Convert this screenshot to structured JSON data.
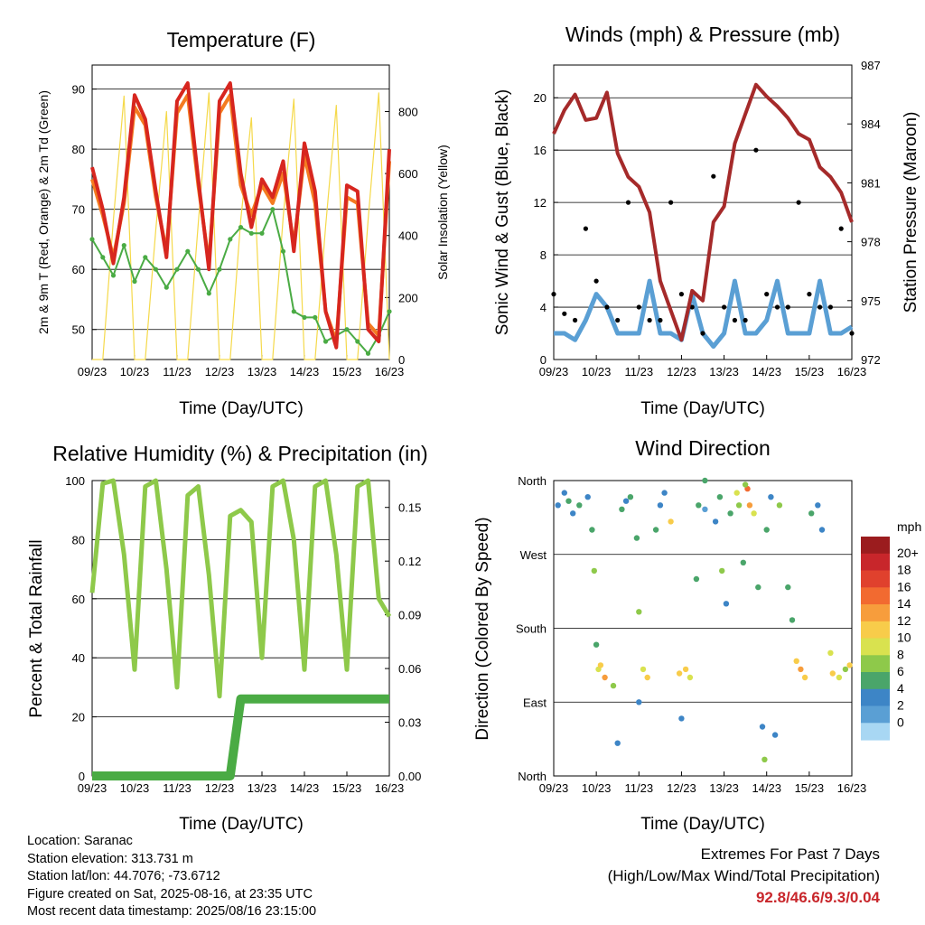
{
  "colors": {
    "temp2m": "#d7261f",
    "temp9m": "#f47b20",
    "dewpoint": "#4aab44",
    "solar": "#f5d94a",
    "wind": "#5a9fd4",
    "gust": "#000000",
    "pressure": "#a52a2a",
    "rh": "#8ec94a",
    "precip": "#4aab44"
  },
  "x_ticks": [
    "09/23",
    "10/23",
    "11/23",
    "12/23",
    "13/23",
    "14/23",
    "15/23",
    "16/23"
  ],
  "charts": [
    {
      "id": "temperature",
      "type": "line",
      "title": "Temperature (F)",
      "xlabel": "Time (Day/UTC)",
      "ylabel_left": "2m & 9m T (Red, Orange) & 2m Td (Green)",
      "ylabel_right": "Solar Insolation (Yellow)",
      "ylim_left": [
        45,
        94
      ],
      "ylim_right": [
        0,
        950
      ],
      "yticks_left": [
        50,
        60,
        70,
        80,
        90
      ],
      "yticks_right": [
        0,
        200,
        400,
        600,
        800
      ],
      "x": [
        0,
        0.25,
        0.5,
        0.75,
        1,
        1.25,
        1.5,
        1.75,
        2,
        2.25,
        2.5,
        2.75,
        3,
        3.25,
        3.5,
        3.75,
        4,
        4.25,
        4.5,
        4.75,
        5,
        5.25,
        5.5,
        5.75,
        6,
        6.25,
        6.5,
        6.75,
        7
      ],
      "series": [
        {
          "key": "temp2m",
          "values": [
            77,
            70,
            61,
            72,
            89,
            85,
            73,
            62,
            88,
            91,
            75,
            60,
            88,
            91,
            76,
            67,
            75,
            72,
            78,
            63,
            81,
            73,
            53,
            47,
            74,
            73,
            50,
            48,
            80
          ]
        },
        {
          "key": "temp9m",
          "values": [
            75,
            69,
            62,
            71,
            87,
            84,
            72,
            63,
            86,
            89,
            74,
            61,
            86,
            89,
            74,
            69,
            74,
            71,
            76,
            64,
            79,
            71,
            53,
            48,
            72,
            71,
            51,
            49,
            78
          ]
        },
        {
          "key": "dewpoint",
          "values": [
            65,
            62,
            59,
            64,
            58,
            62,
            60,
            57,
            60,
            63,
            60,
            56,
            60,
            65,
            67,
            66,
            66,
            70,
            63,
            53,
            52,
            52,
            48,
            49,
            50,
            48,
            46,
            49,
            53
          ]
        },
        {
          "key": "solar",
          "values": [
            0,
            0,
            450,
            850,
            0,
            0,
            420,
            800,
            0,
            0,
            440,
            860,
            0,
            0,
            450,
            780,
            0,
            0,
            460,
            840,
            0,
            0,
            430,
            820,
            0,
            0,
            450,
            860,
            0
          ]
        }
      ]
    },
    {
      "id": "winds",
      "type": "line",
      "title": "Winds (mph) & Pressure (mb)",
      "xlabel": "Time (Day/UTC)",
      "ylabel_left": "Sonic Wind & Gust (Blue, Black)",
      "ylabel_right": "Station Pressure (Maroon)",
      "ylim_left": [
        0,
        22.5
      ],
      "ylim_right": [
        972,
        987
      ],
      "yticks_left": [
        0,
        4,
        8,
        12,
        16,
        20
      ],
      "yticks_right": [
        972,
        975,
        978,
        981,
        984,
        987
      ],
      "x": [
        0,
        0.25,
        0.5,
        0.75,
        1,
        1.25,
        1.5,
        1.75,
        2,
        2.25,
        2.5,
        2.75,
        3,
        3.25,
        3.5,
        3.75,
        4,
        4.25,
        4.5,
        4.75,
        5,
        5.25,
        5.5,
        5.75,
        6,
        6.25,
        6.5,
        6.75,
        7
      ],
      "series": [
        {
          "key": "wind",
          "values": [
            2,
            2,
            1.5,
            3,
            5,
            4,
            2,
            2,
            2,
            6,
            2,
            2,
            1.5,
            5,
            2,
            1,
            2,
            6,
            2,
            2,
            3,
            6,
            2,
            2,
            2,
            6,
            2,
            2,
            2.5
          ]
        },
        {
          "key": "gust",
          "values": [
            5,
            3.5,
            3,
            10,
            6,
            4,
            3,
            12,
            4,
            3,
            3,
            12,
            5,
            4,
            2,
            14,
            4,
            3,
            3,
            16,
            5,
            4,
            4,
            12,
            5,
            4,
            4,
            10,
            2
          ]
        },
        {
          "key": "pressure",
          "values": [
            983.5,
            984.7,
            985.5,
            984.2,
            984.3,
            985.6,
            982.5,
            981.3,
            980.8,
            979.5,
            976,
            974.5,
            973,
            975.5,
            975,
            979,
            979.8,
            983,
            984.5,
            986,
            985.4,
            984.9,
            984.3,
            983.5,
            983.2,
            981.8,
            981.3,
            980.5,
            979
          ]
        }
      ]
    },
    {
      "id": "humidity",
      "type": "line",
      "title": "Relative Humidity (%) & Precipitation (in)",
      "xlabel": "Time (Day/UTC)",
      "ylabel_left": "Percent & Total Rainfall",
      "ylabel_right": "",
      "ylim_left": [
        0,
        100
      ],
      "ylim_right": [
        0,
        0.165
      ],
      "yticks_left": [
        0,
        20,
        40,
        60,
        80,
        100
      ],
      "yticks_right": [
        "0.00",
        "0.03",
        "0.06",
        "0.09",
        "0.12",
        "0.15"
      ],
      "x": [
        0,
        0.25,
        0.5,
        0.75,
        1,
        1.25,
        1.5,
        1.75,
        2,
        2.25,
        2.5,
        2.75,
        3,
        3.25,
        3.5,
        3.75,
        4,
        4.25,
        4.5,
        4.75,
        5,
        5.25,
        5.5,
        5.75,
        6,
        6.25,
        6.5,
        6.75,
        7
      ],
      "series": [
        {
          "key": "rh",
          "values": [
            62,
            99,
            100,
            75,
            36,
            98,
            100,
            70,
            30,
            95,
            98,
            68,
            27,
            88,
            90,
            86,
            40,
            98,
            100,
            80,
            36,
            98,
            100,
            75,
            36,
            98,
            100,
            60,
            54
          ]
        },
        {
          "key": "precip",
          "values": [
            0,
            0,
            0,
            0,
            0,
            0,
            0,
            0,
            0,
            0,
            0,
            0,
            0,
            0,
            0.043,
            0.043,
            0.043,
            0.043,
            0.043,
            0.043,
            0.043,
            0.043,
            0.043,
            0.043,
            0.043,
            0.043,
            0.043,
            0.043,
            0.043
          ]
        }
      ]
    },
    {
      "id": "direction",
      "type": "scatter",
      "title": "Wind Direction",
      "xlabel": "Time (Day/UTC)",
      "ylabel_left": "Direction (Colored By Speed)",
      "ylim_left": [
        0,
        360
      ],
      "yticks_left": [
        {
          "v": 0,
          "label": "North"
        },
        {
          "v": 90,
          "label": "East"
        },
        {
          "v": 180,
          "label": "South"
        },
        {
          "v": 270,
          "label": "West"
        },
        {
          "v": 360,
          "label": "North"
        }
      ],
      "points": [
        [
          0.1,
          330
        ],
        [
          0.25,
          345
        ],
        [
          0.35,
          335
        ],
        [
          0.45,
          320
        ],
        [
          0.6,
          330
        ],
        [
          0.8,
          340
        ],
        [
          0.9,
          300
        ],
        [
          0.95,
          250
        ],
        [
          1.0,
          160
        ],
        [
          1.05,
          130
        ],
        [
          1.1,
          135
        ],
        [
          1.2,
          120
        ],
        [
          1.4,
          110
        ],
        [
          1.6,
          325
        ],
        [
          1.7,
          335
        ],
        [
          1.8,
          340
        ],
        [
          1.95,
          290
        ],
        [
          2.0,
          200
        ],
        [
          2.1,
          130
        ],
        [
          2.2,
          120
        ],
        [
          2.4,
          300
        ],
        [
          2.5,
          330
        ],
        [
          2.6,
          345
        ],
        [
          2.75,
          310
        ],
        [
          2.95,
          125
        ],
        [
          3.1,
          130
        ],
        [
          3.2,
          120
        ],
        [
          3.35,
          240
        ],
        [
          3.4,
          330
        ],
        [
          3.55,
          325
        ],
        [
          3.8,
          310
        ],
        [
          3.9,
          340
        ],
        [
          3.95,
          250
        ],
        [
          4.05,
          210
        ],
        [
          4.15,
          320
        ],
        [
          4.3,
          345
        ],
        [
          4.35,
          330
        ],
        [
          4.45,
          260
        ],
        [
          4.55,
          350
        ],
        [
          4.6,
          330
        ],
        [
          4.7,
          320
        ],
        [
          4.8,
          230
        ],
        [
          4.9,
          60
        ],
        [
          4.95,
          20
        ],
        [
          5.0,
          300
        ],
        [
          5.1,
          340
        ],
        [
          5.3,
          330
        ],
        [
          5.5,
          230
        ],
        [
          5.6,
          190
        ],
        [
          5.7,
          140
        ],
        [
          5.8,
          130
        ],
        [
          5.9,
          120
        ],
        [
          6.05,
          320
        ],
        [
          6.2,
          330
        ],
        [
          6.3,
          300
        ],
        [
          6.5,
          150
        ],
        [
          6.55,
          125
        ],
        [
          6.7,
          120
        ],
        [
          6.85,
          130
        ],
        [
          6.95,
          135
        ],
        [
          3.55,
          360
        ],
        [
          4.5,
          355
        ],
        [
          2.0,
          90
        ],
        [
          3.0,
          70
        ],
        [
          5.2,
          50
        ],
        [
          1.5,
          40
        ]
      ],
      "point_speeds": [
        2,
        2,
        3,
        2,
        3,
        2,
        3,
        4,
        3,
        5,
        6,
        7,
        4,
        3,
        2,
        3,
        3,
        4,
        5,
        6,
        3,
        2,
        2,
        6,
        6,
        6,
        5,
        3,
        3,
        1,
        2,
        3,
        4,
        2,
        3,
        5,
        4,
        3,
        8,
        7,
        5,
        3,
        2,
        4,
        3,
        2,
        4,
        3,
        3,
        6,
        7,
        6,
        3,
        2,
        2,
        5,
        6,
        5,
        4,
        6,
        3,
        4,
        2,
        2,
        2,
        2
      ]
    }
  ],
  "colorbar": {
    "title": "mph",
    "labels": [
      "20+",
      "18",
      "16",
      "14",
      "12",
      "10",
      "8",
      "6",
      "4",
      "2",
      "0"
    ],
    "colors": [
      "#9b1c1e",
      "#c8262b",
      "#e0412d",
      "#f26a30",
      "#f79d3c",
      "#f8cc4a",
      "#d9e24f",
      "#8ec94a",
      "#4aa56a",
      "#3d85c6",
      "#5a9fd4",
      "#a8d7f3"
    ]
  },
  "info": {
    "location": "Location: Saranac",
    "elevation": "Station elevation: 313.731 m",
    "latlon": "Station lat/lon: 44.7076; -73.6712",
    "created": "Figure created on Sat, 2025-08-16, at 23:35 UTC",
    "recent": "Most recent data timestamp: 2025/08/16 23:15:00"
  },
  "extremes": {
    "title": "Extremes For Past 7 Days",
    "subtitle": "(High/Low/Max Wind/Total Precipitation)",
    "values": "92.8/46.6/9.3/0.04"
  }
}
